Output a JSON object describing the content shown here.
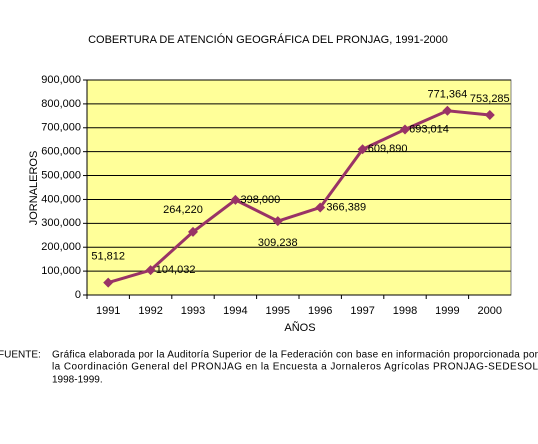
{
  "chart_data": {
    "type": "line",
    "title": "COBERTURA DE ATENCIÓN GEOGRÁFICA DEL PRONJAG, 1991-2000",
    "x_label": "AÑOS",
    "y_label": "JORNALEROS",
    "categories": [
      "1991",
      "1992",
      "1993",
      "1994",
      "1995",
      "1996",
      "1997",
      "1998",
      "1999",
      "2000"
    ],
    "values": [
      51812,
      104032,
      264220,
      398000,
      309238,
      366389,
      609890,
      693014,
      771364,
      753285
    ],
    "value_labels": [
      "51,812",
      "104,032",
      "264,220",
      "398,000",
      "309,238",
      "366,389",
      "609,890",
      "693,014",
      "771,364",
      "753,285"
    ],
    "color": "#993366",
    "plot_background": "#ffff99",
    "ylim": [
      0,
      900000
    ],
    "yticks": [
      0,
      {
        "value": 100000,
        "label": "100,000"
      },
      {
        "value": 200000,
        "label": "200,000"
      },
      {
        "value": 300000,
        "label": "300,000"
      },
      {
        "value": 400000,
        "label": "400,000"
      },
      {
        "value": 500000,
        "label": "500,000"
      },
      {
        "value": 600000,
        "label": "600,000"
      },
      {
        "value": 700000,
        "label": "700,000"
      },
      {
        "value": 800000,
        "label": "800,000"
      },
      {
        "value": 900000,
        "label": "900,000"
      }
    ],
    "grid": true
  },
  "footnote": {
    "label": "FUENTE:",
    "lines": [
      "Gráfica elaborada por la Auditoría Superior de la Federación con base en información proporcionada por",
      "la Coordinación General del PRONJAG en la Encuesta a Jornaleros Agrícolas PRONJAG-SEDESOL",
      "1998-1999."
    ]
  }
}
